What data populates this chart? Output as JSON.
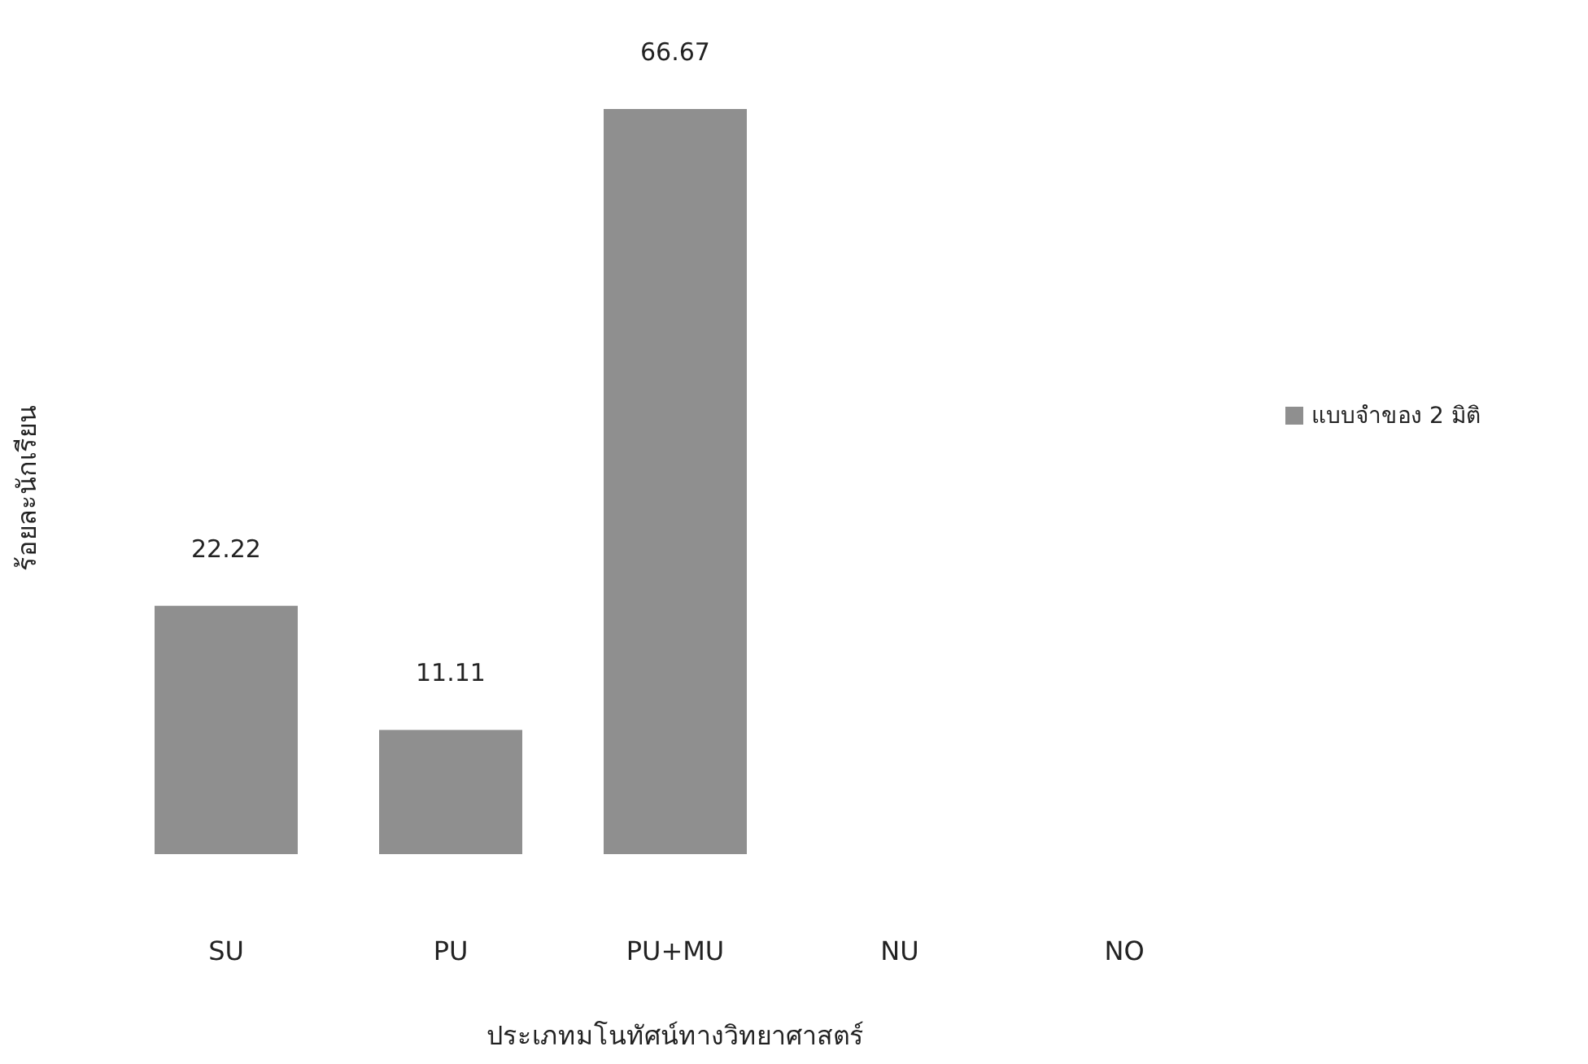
{
  "chart_data": {
    "type": "bar",
    "xlabel": "ประเภทมโนทัศน์ทางวิทยาศาสตร์",
    "ylabel": "ร้อยละนักเรียน",
    "categories": [
      "SU",
      "PU",
      "PU+MU",
      "NU",
      "NO"
    ],
    "series": [
      {
        "name": "แบบจำของ 2 มิติ",
        "color": "#8f8f8f",
        "values": [
          22.22,
          11.11,
          66.67,
          null,
          null
        ]
      }
    ],
    "data_labels": true,
    "legend": "right"
  }
}
